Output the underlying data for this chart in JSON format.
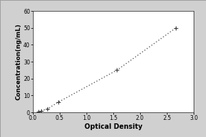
{
  "title": "",
  "xlabel": "Optical Density",
  "ylabel": "Concentration(ng/mL)",
  "x_data": [
    0.1,
    0.15,
    0.27,
    0.47,
    1.57,
    2.67
  ],
  "y_data": [
    0.5,
    1.0,
    2.0,
    6.0,
    25.0,
    50.0
  ],
  "xlim": [
    0,
    3
  ],
  "ylim": [
    0,
    60
  ],
  "xticks": [
    0,
    0.5,
    1,
    1.5,
    2,
    2.5,
    3
  ],
  "yticks": [
    0,
    10,
    20,
    30,
    40,
    50,
    60
  ],
  "line_color": "#555555",
  "marker_color": "#333333",
  "background_color": "#ffffff",
  "xlabel_fontsize": 7,
  "ylabel_fontsize": 6.5,
  "tick_fontsize": 5.5,
  "outer_bg": "#d0d0d0"
}
